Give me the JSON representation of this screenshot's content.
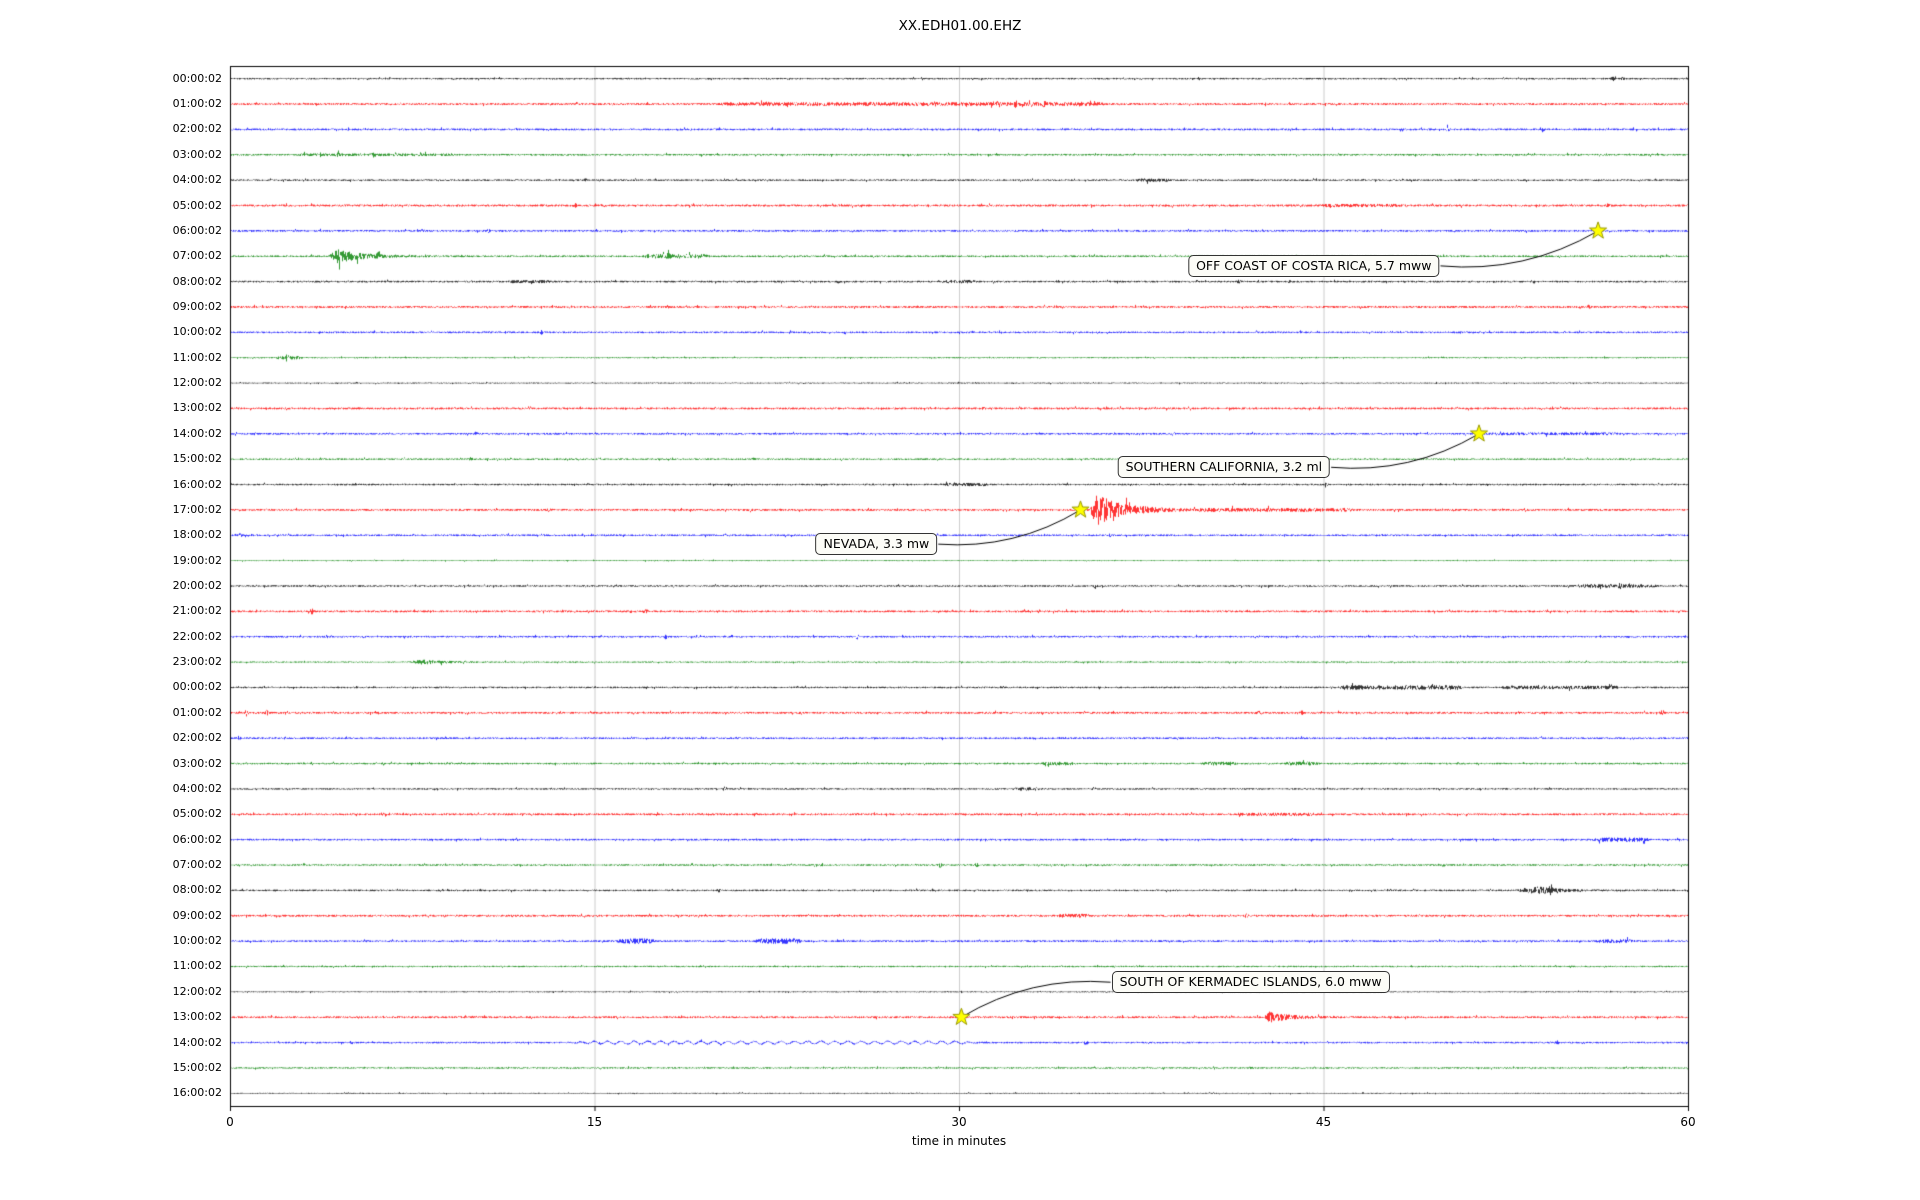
{
  "chart_data": {
    "type": "line",
    "subtype": "helicorder-seismogram-dayplot",
    "title": "XX.EDH01.00.EHZ",
    "xlabel": "time in minutes",
    "xlim": [
      0,
      60
    ],
    "x_ticks": [
      0,
      15,
      30,
      45,
      60
    ],
    "minutes_per_row": 60,
    "grid": "vertical-light",
    "row_color_cycle": [
      "#000000",
      "#ff0000",
      "#0000ff",
      "#008000"
    ],
    "colors": {
      "grid": "#cccccc",
      "frame": "#000000",
      "star_fill": "#ffff00",
      "star_edge": "#999900",
      "annotation_bg": "#fcfcf7",
      "annotation_border": "#333333",
      "arrow": "#000000"
    },
    "row_labels": [
      "00:00:02",
      "01:00:02",
      "02:00:02",
      "03:00:02",
      "04:00:02",
      "05:00:02",
      "06:00:02",
      "07:00:02",
      "08:00:02",
      "09:00:02",
      "10:00:02",
      "11:00:02",
      "12:00:02",
      "13:00:02",
      "14:00:02",
      "15:00:02",
      "16:00:02",
      "17:00:02",
      "18:00:02",
      "19:00:02",
      "20:00:02",
      "21:00:02",
      "22:00:02",
      "23:00:02",
      "00:00:02",
      "01:00:02",
      "02:00:02",
      "03:00:02",
      "04:00:02",
      "05:00:02",
      "06:00:02",
      "07:00:02",
      "08:00:02",
      "09:00:02",
      "10:00:02",
      "11:00:02",
      "12:00:02",
      "13:00:02",
      "14:00:02",
      "15:00:02",
      "16:00:02"
    ],
    "noise_base": [
      0.8,
      1.0,
      0.95,
      0.9,
      0.85,
      1.05,
      0.95,
      0.9,
      0.9,
      1.0,
      0.9,
      0.65,
      0.6,
      1.0,
      0.9,
      0.85,
      0.85,
      1.0,
      0.9,
      0.55,
      0.85,
      1.0,
      0.9,
      0.7,
      0.85,
      1.0,
      0.9,
      0.85,
      0.8,
      1.0,
      0.9,
      0.85,
      0.85,
      1.0,
      0.9,
      0.75,
      0.6,
      1.0,
      0.85,
      0.8,
      0.55
    ],
    "events": [
      {
        "label": "OFF COAST OF COSTA RICA, 5.7 mww",
        "star_row": 6,
        "star_minute": 56.3,
        "text_row": 7.38,
        "text_minute": 44.6,
        "arrow_from": "right"
      },
      {
        "label": "SOUTHERN CALIFORNIA, 3.2 ml",
        "star_row": 14,
        "star_minute": 51.4,
        "text_row": 15.32,
        "text_minute": 40.9,
        "arrow_from": "right"
      },
      {
        "label": "NEVADA, 3.3 mw",
        "star_row": 17,
        "star_minute": 35.0,
        "text_row": 18.35,
        "text_minute": 26.6,
        "arrow_from": "right"
      },
      {
        "label": "SOUTH OF KERMADEC ISLANDS, 6.0 mww",
        "star_row": 37,
        "star_minute": 30.1,
        "text_row": 35.62,
        "text_minute": 42.0,
        "arrow_from": "left"
      }
    ],
    "features": [
      {
        "r": 0,
        "k": "spike",
        "t": 56.9,
        "a": 1.8
      },
      {
        "r": 0,
        "k": "spike",
        "t": 57.3,
        "a": 1.4
      },
      {
        "r": 1,
        "k": "fuzz",
        "t0": 20.3,
        "t1": 35.8,
        "a": 0.9
      },
      {
        "r": 1,
        "k": "spike",
        "t": 22.1,
        "a": 1.6
      },
      {
        "r": 1,
        "k": "spike",
        "t": 26.3,
        "a": 2.6
      },
      {
        "r": 1,
        "k": "spike",
        "t": 29.0,
        "a": 1.5
      },
      {
        "r": 1,
        "k": "spike",
        "t": 31.6,
        "a": 2.0
      },
      {
        "r": 1,
        "k": "spike",
        "t": 32.3,
        "a": 3.0
      },
      {
        "r": 1,
        "k": "spike",
        "t": 33.5,
        "a": 2.0
      },
      {
        "r": 2,
        "k": "spike",
        "t": 50.1,
        "a": 1.5
      },
      {
        "r": 2,
        "k": "spike",
        "t": 54.0,
        "a": 1.9
      },
      {
        "r": 3,
        "k": "fuzz",
        "t0": 3.0,
        "t1": 9.0,
        "a": 0.5
      },
      {
        "r": 3,
        "k": "spike",
        "t": 4.4,
        "a": 1.7
      },
      {
        "r": 3,
        "k": "spike",
        "t": 5.9,
        "a": 1.5
      },
      {
        "r": 4,
        "k": "spike",
        "t": 14.6,
        "a": 1.2
      },
      {
        "r": 4,
        "k": "fuzz",
        "t0": 37.5,
        "t1": 38.5,
        "a": 0.9
      },
      {
        "r": 5,
        "k": "spike",
        "t": 14.2,
        "a": 1.4
      },
      {
        "r": 5,
        "k": "fuzz",
        "t0": 45.0,
        "t1": 48.0,
        "a": 0.6
      },
      {
        "r": 5,
        "k": "spike",
        "t": 56.7,
        "a": 1.8
      },
      {
        "r": 6,
        "k": "spike",
        "t": 7.9,
        "a": 1.6
      },
      {
        "r": 6,
        "k": "spike",
        "t": 10.6,
        "a": 1.4
      },
      {
        "r": 7,
        "k": "burst",
        "t0": 4.05,
        "rise": 0.35,
        "tau": 1.0,
        "a": 6.5
      },
      {
        "r": 7,
        "k": "spike",
        "t": 6.1,
        "a": 3.5
      },
      {
        "r": 7,
        "k": "fuzz",
        "t0": 17.2,
        "t1": 19.5,
        "a": 1.4
      },
      {
        "r": 7,
        "k": "spike",
        "t": 18.0,
        "a": 1.6
      },
      {
        "r": 8,
        "k": "fuzz",
        "t0": 11.5,
        "t1": 13.0,
        "a": 0.7
      },
      {
        "r": 8,
        "k": "spike",
        "t": 25.0,
        "a": 1.4
      },
      {
        "r": 8,
        "k": "fuzz",
        "t0": 29.5,
        "t1": 30.5,
        "a": 0.9
      },
      {
        "r": 8,
        "k": "spike",
        "t": 41.5,
        "a": 1.5
      },
      {
        "r": 8,
        "k": "spike",
        "t": 43.6,
        "a": 1.3
      },
      {
        "r": 9,
        "k": "spike",
        "t": 18.0,
        "a": 1.3
      },
      {
        "r": 9,
        "k": "spike",
        "t": 55.9,
        "a": 1.3
      },
      {
        "r": 10,
        "k": "spike",
        "t": 12.8,
        "a": 1.5
      },
      {
        "r": 11,
        "k": "fuzz",
        "t0": 2.0,
        "t1": 2.8,
        "a": 1.1
      },
      {
        "r": 11,
        "k": "spike",
        "t": 2.35,
        "a": 3.2
      },
      {
        "r": 13,
        "k": "spike",
        "t": 31.0,
        "a": 1.2
      },
      {
        "r": 14,
        "k": "spike",
        "t": 10.1,
        "a": 1.3
      },
      {
        "r": 14,
        "k": "fuzz",
        "t0": 52.0,
        "t1": 57.0,
        "a": 0.6
      },
      {
        "r": 15,
        "k": "spike",
        "t": 9.9,
        "a": 1.4
      },
      {
        "r": 15,
        "k": "spike",
        "t": 21.5,
        "a": 1.3
      },
      {
        "r": 16,
        "k": "fuzz",
        "t0": 29.5,
        "t1": 31.0,
        "a": 0.8
      },
      {
        "r": 16,
        "k": "spike",
        "t": 45.1,
        "a": 1.2
      },
      {
        "r": 17,
        "k": "spike",
        "t": 34.9,
        "a": 3.2
      },
      {
        "r": 17,
        "k": "burst",
        "t0": 35.35,
        "rise": 0.3,
        "tau": 1.15,
        "a": 15
      },
      {
        "r": 17,
        "k": "fuzz",
        "t0": 40.0,
        "t1": 46.0,
        "a": 0.9
      },
      {
        "r": 17,
        "k": "spike",
        "t": 13.1,
        "a": 1.6
      },
      {
        "r": 17,
        "k": "spike",
        "t": 21.4,
        "a": 1.5
      },
      {
        "r": 18,
        "k": "spike",
        "t": 36.15,
        "a": 2.6
      },
      {
        "r": 18,
        "k": "spike",
        "t": 0.4,
        "a": 1.4
      },
      {
        "r": 20,
        "k": "spike",
        "t": 35.6,
        "a": 2.1
      },
      {
        "r": 20,
        "k": "fuzz",
        "t0": 55.5,
        "t1": 58.5,
        "a": 1.0
      },
      {
        "r": 20,
        "k": "spike",
        "t": 57.2,
        "a": 1.8
      },
      {
        "r": 21,
        "k": "spike",
        "t": 3.35,
        "a": 2.3
      },
      {
        "r": 21,
        "k": "spike",
        "t": 17.1,
        "a": 1.8
      },
      {
        "r": 22,
        "k": "spike",
        "t": 17.9,
        "a": 1.9
      },
      {
        "r": 22,
        "k": "spike",
        "t": 25.8,
        "a": 1.9
      },
      {
        "r": 23,
        "k": "burst",
        "t0": 7.35,
        "rise": 0.5,
        "tau": 0.9,
        "a": 2.0
      },
      {
        "r": 23,
        "k": "spike",
        "t": 9.6,
        "a": 1.5
      },
      {
        "r": 24,
        "k": "fuzz",
        "t0": 45.8,
        "t1": 50.5,
        "a": 1.5
      },
      {
        "r": 24,
        "k": "fuzz",
        "t0": 52.5,
        "t1": 57.0,
        "a": 1.0
      },
      {
        "r": 25,
        "k": "spike",
        "t": 0.65,
        "a": 2.3
      },
      {
        "r": 25,
        "k": "spike",
        "t": 1.5,
        "a": 2.1
      },
      {
        "r": 25,
        "k": "spike",
        "t": 42.3,
        "a": 1.7
      },
      {
        "r": 25,
        "k": "spike",
        "t": 44.1,
        "a": 1.7
      },
      {
        "r": 25,
        "k": "spike",
        "t": 58.9,
        "a": 1.9
      },
      {
        "r": 26,
        "k": "spike",
        "t": 0.35,
        "a": 1.7
      },
      {
        "r": 27,
        "k": "fuzz",
        "t0": 33.6,
        "t1": 34.6,
        "a": 1.1
      },
      {
        "r": 27,
        "k": "fuzz",
        "t0": 40.2,
        "t1": 41.2,
        "a": 1.1
      },
      {
        "r": 27,
        "k": "fuzz",
        "t0": 43.6,
        "t1": 44.6,
        "a": 1.1
      },
      {
        "r": 28,
        "k": "spike",
        "t": 20.3,
        "a": 1.8
      },
      {
        "r": 28,
        "k": "fuzz",
        "t0": 32.4,
        "t1": 33.2,
        "a": 1.0
      },
      {
        "r": 28,
        "k": "spike",
        "t": 35.55,
        "a": 2.2
      },
      {
        "r": 29,
        "k": "spike",
        "t": 6.35,
        "a": 1.5
      },
      {
        "r": 29,
        "k": "fuzz",
        "t0": 41.5,
        "t1": 44.5,
        "a": 0.7
      },
      {
        "r": 30,
        "k": "fuzz",
        "t0": 56.3,
        "t1": 58.2,
        "a": 1.3
      },
      {
        "r": 31,
        "k": "spike",
        "t": 24.35,
        "a": 1.7
      },
      {
        "r": 31,
        "k": "spike",
        "t": 29.2,
        "a": 1.9
      },
      {
        "r": 31,
        "k": "spike",
        "t": 30.7,
        "a": 1.6
      },
      {
        "r": 32,
        "k": "spike",
        "t": 20.1,
        "a": 1.4
      },
      {
        "r": 32,
        "k": "burst",
        "t0": 52.9,
        "rise": 0.9,
        "tau": 0.9,
        "a": 3.2
      },
      {
        "r": 32,
        "k": "spike",
        "t": 54.35,
        "a": 4.2
      },
      {
        "r": 33,
        "k": "fuzz",
        "t0": 34.2,
        "t1": 35.2,
        "a": 1.0
      },
      {
        "r": 33,
        "k": "spike",
        "t": 41.8,
        "a": 1.6
      },
      {
        "r": 34,
        "k": "fuzz",
        "t0": 16.1,
        "t1": 17.3,
        "a": 1.8
      },
      {
        "r": 34,
        "k": "fuzz",
        "t0": 21.8,
        "t1": 23.3,
        "a": 1.9
      },
      {
        "r": 34,
        "k": "fuzz",
        "t0": 56.4,
        "t1": 57.6,
        "a": 1.1
      },
      {
        "r": 37,
        "k": "burst",
        "t0": 42.55,
        "rise": 0.2,
        "tau": 0.75,
        "a": 5.0
      },
      {
        "r": 38,
        "k": "sine",
        "t0": 14.0,
        "t1": 31.0,
        "a": 1.4,
        "p": 0.55
      },
      {
        "r": 38,
        "k": "spike",
        "t": 35.2,
        "a": 1.6
      },
      {
        "r": 38,
        "k": "spike",
        "t": 54.6,
        "a": 1.5
      },
      {
        "r": 39,
        "k": "spike",
        "t": 42.0,
        "a": 1.0
      }
    ]
  }
}
